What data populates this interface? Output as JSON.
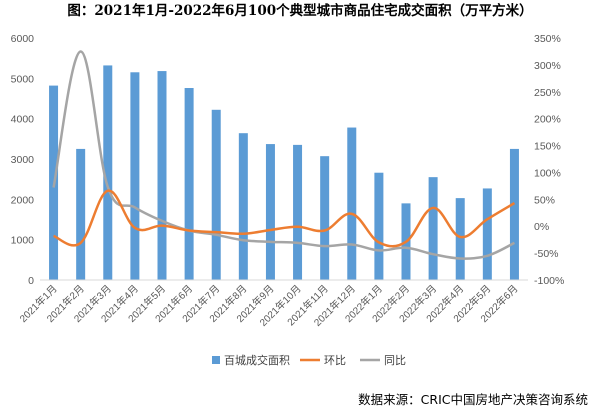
{
  "chart_data": {
    "type": "bar+line",
    "title": "图：2021年1月-2022年6月100个典型城市商品住宅成交面积（万平方米）",
    "categories": [
      "2021年1月",
      "2021年2月",
      "2021年3月",
      "2021年4月",
      "2021年5月",
      "2021年6月",
      "2021年7月",
      "2021年8月",
      "2021年9月",
      "2021年10月",
      "2021年11月",
      "2021年12月",
      "2022年1月",
      "2022年2月",
      "2022年3月",
      "2022年4月",
      "2022年5月",
      "2022年6月"
    ],
    "series": [
      {
        "name": "百城成交面积",
        "type": "bar",
        "axis": "left",
        "color": "#5B9BD5",
        "values": [
          4820,
          3250,
          5320,
          5150,
          5180,
          4760,
          4220,
          3640,
          3370,
          3350,
          3070,
          3780,
          2660,
          1900,
          2550,
          2030,
          2270,
          3250
        ]
      },
      {
        "name": "环比",
        "type": "line",
        "axis": "right",
        "unit": "%",
        "color": "#ED7D31",
        "values": [
          -18,
          -31,
          66,
          -3,
          1,
          -8,
          -11,
          -14,
          -7,
          -1,
          -8,
          23,
          -30,
          -29,
          34,
          -20,
          13,
          43
        ]
      },
      {
        "name": "同比",
        "type": "line",
        "axis": "right",
        "unit": "%",
        "color": "#A5A5A5",
        "values": [
          72,
          325,
          73,
          35,
          10,
          -8,
          -16,
          -26,
          -29,
          -31,
          -37,
          -34,
          -45,
          -40,
          -52,
          -60,
          -55,
          -31
        ]
      }
    ],
    "y_left": {
      "min": 0,
      "max": 6000,
      "step": 1000,
      "ticks": [
        "0",
        "1000",
        "2000",
        "3000",
        "4000",
        "5000",
        "6000"
      ]
    },
    "y_right": {
      "min": -100,
      "max": 350,
      "step": 50,
      "ticks": [
        "-100%",
        "-50%",
        "0%",
        "50%",
        "100%",
        "150%",
        "200%",
        "250%",
        "300%",
        "350%"
      ]
    },
    "grid": false,
    "legend_position": "bottom"
  },
  "source": "数据来源：CRIC中国房地产决策咨询系统"
}
